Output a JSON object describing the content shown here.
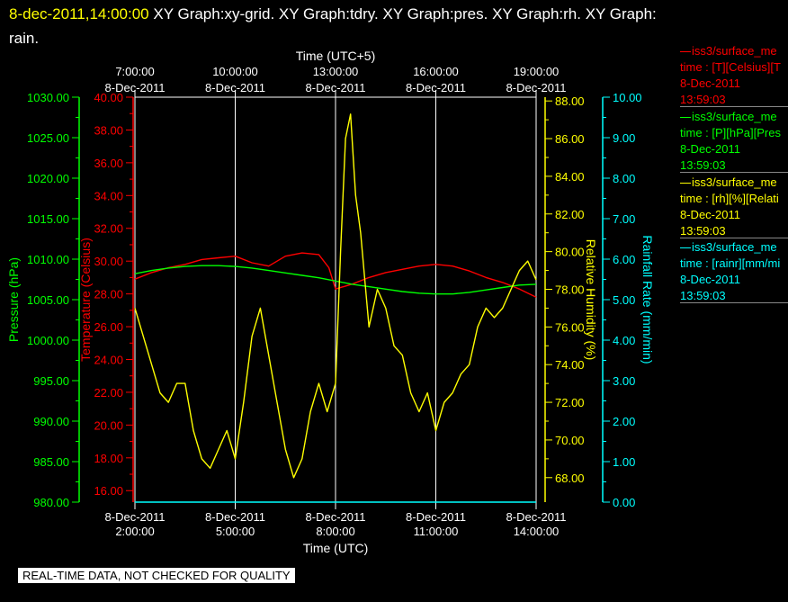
{
  "header": {
    "timestamp": "8-dec-2011,14:00:00",
    "title_line1": "XY Graph:xy-grid.  XY Graph:tdry.  XY Graph:pres.  XY Graph:rh.  XY Graph:",
    "title_line2": "rain."
  },
  "legend": [
    {
      "name": "iss3/surface_me",
      "units": "time : [T][Celsius][T",
      "date": "8-Dec-2011",
      "time": "13:59:03",
      "color": "#ff0000"
    },
    {
      "name": "iss3/surface_me",
      "units": "time : [P][hPa][Pres",
      "date": "8-Dec-2011",
      "time": "13:59:03",
      "color": "#00ff00"
    },
    {
      "name": "iss3/surface_me",
      "units": "time : [rh][%][Relati",
      "date": "8-Dec-2011",
      "time": "13:59:03",
      "color": "#ffff00"
    },
    {
      "name": "iss3/surface_me",
      "units": "time : [rainr][mm/mi",
      "date": "8-Dec-2011",
      "time": "13:59:03",
      "color": "#00ffff"
    }
  ],
  "notice": "REAL-TIME DATA, NOT CHECKED FOR QUALITY",
  "chart_data": {
    "type": "line",
    "x_bottom": {
      "label": "Time (UTC)",
      "ticks": [
        {
          "date": "8-Dec-2011",
          "time": "2:00:00",
          "h": 2
        },
        {
          "date": "8-Dec-2011",
          "time": "5:00:00",
          "h": 5
        },
        {
          "date": "8-Dec-2011",
          "time": "8:00:00",
          "h": 8
        },
        {
          "date": "8-Dec-2011",
          "time": "11:00:00",
          "h": 11
        },
        {
          "date": "8-Dec-2011",
          "time": "14:00:00",
          "h": 14
        }
      ],
      "range_hours_utc": [
        2,
        14
      ]
    },
    "x_top": {
      "label": "Time (UTC+5)",
      "ticks": [
        {
          "time": "7:00:00",
          "date": "8-Dec-2011"
        },
        {
          "time": "10:00:00",
          "date": "8-Dec-2011"
        },
        {
          "time": "13:00:00",
          "date": "8-Dec-2011"
        },
        {
          "time": "16:00:00",
          "date": "8-Dec-2011"
        },
        {
          "time": "19:00:00",
          "date": "8-Dec-2011"
        }
      ]
    },
    "axes": {
      "pressure": {
        "label": "Pressure (hPa)",
        "color": "#00ff00",
        "ylim": [
          980,
          1030
        ],
        "ticks": [
          "980.00",
          "985.00",
          "990.00",
          "995.00",
          "1000.00",
          "1005.00",
          "1010.00",
          "1015.00",
          "1020.00",
          "1025.00",
          "1030.00"
        ]
      },
      "temperature": {
        "label": "Temperature (Celsius)",
        "color": "#ff0000",
        "ylim": [
          15.3,
          40
        ],
        "ticks": [
          "16.00",
          "18.00",
          "20.00",
          "22.00",
          "24.00",
          "26.00",
          "28.00",
          "30.00",
          "32.00",
          "34.00",
          "36.00",
          "38.00",
          "40.00"
        ]
      },
      "humidity": {
        "label": "Relative Humidity (%)",
        "color": "#ffff00",
        "ylim": [
          66.7,
          88.2
        ],
        "ticks": [
          "68.00",
          "70.00",
          "72.00",
          "74.00",
          "76.00",
          "78.00",
          "80.00",
          "82.00",
          "84.00",
          "86.00",
          "88.00"
        ]
      },
      "rainfall": {
        "label": "Rainfall Rate (mm/min)",
        "color": "#00ffff",
        "ylim": [
          0,
          10
        ],
        "ticks": [
          "0.00",
          "1.00",
          "2.00",
          "3.00",
          "4.00",
          "5.00",
          "6.00",
          "7.00",
          "8.00",
          "9.00",
          "10.00"
        ]
      }
    },
    "grid": true,
    "series": [
      {
        "name": "iss3/surface_me",
        "axis": "temperature",
        "color": "#ff0000",
        "x": [
          2.0,
          2.5,
          3.0,
          3.5,
          4.0,
          4.5,
          5.0,
          5.5,
          6.0,
          6.5,
          7.0,
          7.5,
          7.8,
          8.0,
          8.5,
          9.0,
          9.5,
          10.0,
          10.5,
          11.0,
          11.5,
          12.0,
          12.5,
          13.0,
          13.5,
          14.0
        ],
        "values": [
          28.9,
          29.3,
          29.6,
          29.8,
          30.1,
          30.2,
          30.3,
          29.9,
          29.7,
          30.3,
          30.5,
          30.4,
          29.6,
          28.3,
          28.6,
          29.0,
          29.3,
          29.5,
          29.7,
          29.8,
          29.7,
          29.4,
          29.0,
          28.7,
          28.3,
          27.8
        ]
      },
      {
        "name": "iss3/surface_me",
        "axis": "pressure",
        "color": "#00ff00",
        "x": [
          2.0,
          2.5,
          3.0,
          3.5,
          4.0,
          4.5,
          5.0,
          5.5,
          6.0,
          6.5,
          7.0,
          7.5,
          8.0,
          8.5,
          9.0,
          9.5,
          10.0,
          10.5,
          11.0,
          11.5,
          12.0,
          12.5,
          13.0,
          13.5,
          14.0
        ],
        "values": [
          1008.2,
          1008.6,
          1008.9,
          1009.1,
          1009.2,
          1009.2,
          1009.1,
          1008.9,
          1008.6,
          1008.3,
          1008.0,
          1007.7,
          1007.3,
          1006.9,
          1006.6,
          1006.3,
          1006.0,
          1005.8,
          1005.7,
          1005.7,
          1005.9,
          1006.2,
          1006.5,
          1006.8,
          1006.9
        ]
      },
      {
        "name": "iss3/surface_me",
        "axis": "humidity",
        "color": "#ffff00",
        "x": [
          2.0,
          2.25,
          2.5,
          2.75,
          3.0,
          3.25,
          3.5,
          3.75,
          4.0,
          4.25,
          4.5,
          4.75,
          5.0,
          5.25,
          5.5,
          5.75,
          6.0,
          6.25,
          6.5,
          6.75,
          7.0,
          7.25,
          7.5,
          7.75,
          8.0,
          8.15,
          8.3,
          8.45,
          8.6,
          8.75,
          9.0,
          9.25,
          9.5,
          9.75,
          10.0,
          10.25,
          10.5,
          10.75,
          11.0,
          11.25,
          11.5,
          11.75,
          12.0,
          12.25,
          12.5,
          12.75,
          13.0,
          13.25,
          13.5,
          13.75,
          14.0
        ],
        "values": [
          77.0,
          75.5,
          74.0,
          72.5,
          72.0,
          73.0,
          73.0,
          70.5,
          69.0,
          68.5,
          69.5,
          70.5,
          69.0,
          72.0,
          75.5,
          77.0,
          74.5,
          72.0,
          69.5,
          68.0,
          69.0,
          71.5,
          73.0,
          71.5,
          73.0,
          80.0,
          86.0,
          87.3,
          83.0,
          81.0,
          76.0,
          78.0,
          77.0,
          75.0,
          74.5,
          72.5,
          71.5,
          72.5,
          70.5,
          72.0,
          72.5,
          73.5,
          74.0,
          76.0,
          77.0,
          76.5,
          77.0,
          78.0,
          79.0,
          79.5,
          78.5
        ]
      },
      {
        "name": "iss3/surface_me",
        "axis": "rainfall",
        "color": "#00ffff",
        "x": [
          2.0,
          14.0
        ],
        "values": [
          0.0,
          0.0
        ]
      }
    ]
  }
}
